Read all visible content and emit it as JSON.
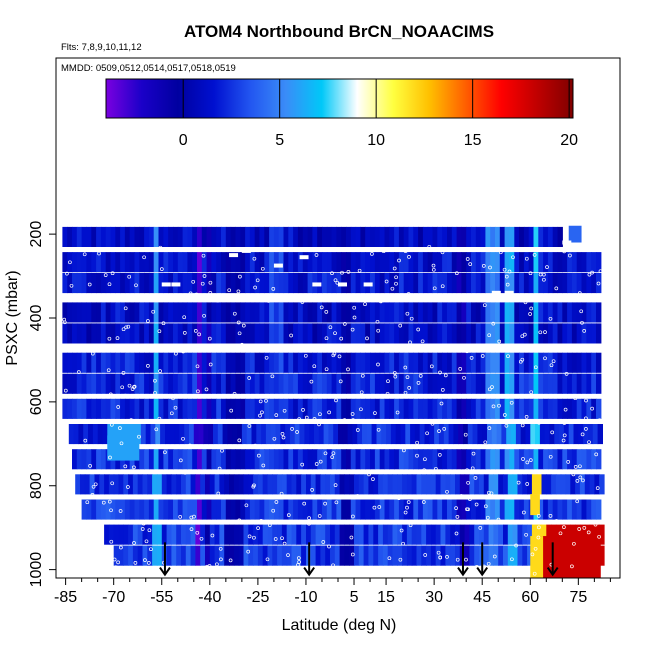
{
  "chart_data": {
    "type": "heatmap",
    "title": "ATOM4 Northbound BrCN_NOAACIMS",
    "notes": [
      "Flts: 7,8,9,10,11,12",
      "MMDD: 0509,0512,0514,0517,0518,0519"
    ],
    "xlabel": "Latitude (deg N)",
    "ylabel": "PSXC (mbar)",
    "xlim": [
      -88,
      88
    ],
    "ylim": [
      1020,
      -220
    ],
    "xticks": [
      -85,
      -70,
      -55,
      -40,
      -25,
      -10,
      5,
      15,
      30,
      45,
      60,
      75
    ],
    "yticks": [
      200,
      400,
      600,
      800,
      1000
    ],
    "colorbar": {
      "min": -4,
      "max": 20.2,
      "ticks": [
        0,
        5,
        10,
        15,
        20
      ],
      "colors": [
        "#7a00e0",
        "#1a00c8",
        "#0000a0",
        "#0010d0",
        "#2255f0",
        "#3a8cf8",
        "#00c8f8",
        "#ffffff",
        "#ffff40",
        "#ffc000",
        "#ff6000",
        "#ff0000",
        "#c00000",
        "#800000"
      ]
    },
    "rows": [
      {
        "p": 240,
        "lat": [
          -86,
          70
        ],
        "base": 1.0
      },
      {
        "p": 300,
        "lat": [
          -86,
          82
        ],
        "base": 1.3
      },
      {
        "p": 350,
        "lat": [
          -86,
          82
        ],
        "base": 1.5
      },
      {
        "p": 420,
        "lat": [
          -86,
          82
        ],
        "base": 1.2
      },
      {
        "p": 470,
        "lat": [
          -86,
          82
        ],
        "base": 1.0
      },
      {
        "p": 540,
        "lat": [
          -86,
          82
        ],
        "base": 1.8
      },
      {
        "p": 590,
        "lat": [
          -86,
          82
        ],
        "base": 2.0
      },
      {
        "p": 650,
        "lat": [
          -86,
          82
        ],
        "base": 2.0
      },
      {
        "p": 710,
        "lat": [
          -84,
          82
        ],
        "base": 2.2
      },
      {
        "p": 770,
        "lat": [
          -83,
          82
        ],
        "base": 2.4
      },
      {
        "p": 830,
        "lat": [
          -82,
          82
        ],
        "base": 2.4
      },
      {
        "p": 890,
        "lat": [
          -80,
          82
        ],
        "base": 2.6
      },
      {
        "p": 950,
        "lat": [
          -73,
          82
        ],
        "base": 2.6
      },
      {
        "p": 1000,
        "lat": [
          -70,
          82
        ],
        "base": 2.8
      }
    ],
    "features": [
      {
        "lat": [
          -58,
          -56
        ],
        "v": 6
      },
      {
        "lat": [
          -45,
          -43
        ],
        "v": -3
      },
      {
        "lat": [
          -42,
          -40
        ],
        "v": -1
      },
      {
        "lat": [
          -36,
          -30
        ],
        "v": 0
      },
      {
        "lat": [
          -22,
          -18
        ],
        "v": 3
      },
      {
        "lat": [
          0,
          4
        ],
        "v": 0
      },
      {
        "lat": [
          37,
          40
        ],
        "v": -1
      },
      {
        "lat": [
          46,
          50
        ],
        "v": 5
      },
      {
        "lat": [
          52,
          55
        ],
        "v": 6
      },
      {
        "lat": [
          60,
          62
        ],
        "v": 7
      }
    ],
    "hotspots": [
      {
        "lat": [
          -72,
          -62
        ],
        "p": [
          680,
          740
        ],
        "v": 6
      },
      {
        "lat": [
          60,
          63
        ],
        "p": [
          820,
          870
        ],
        "v": 12
      },
      {
        "lat": [
          62,
          82
        ],
        "p": [
          920,
          1020
        ],
        "v": 18
      },
      {
        "lat": [
          60,
          64
        ],
        "p": [
          920,
          1020
        ],
        "v": 12
      },
      {
        "lat": [
          72,
          76
        ],
        "p": [
          180,
          220
        ],
        "v": 4
      }
    ],
    "arrows": [
      -54,
      -9,
      39,
      45,
      67
    ]
  }
}
